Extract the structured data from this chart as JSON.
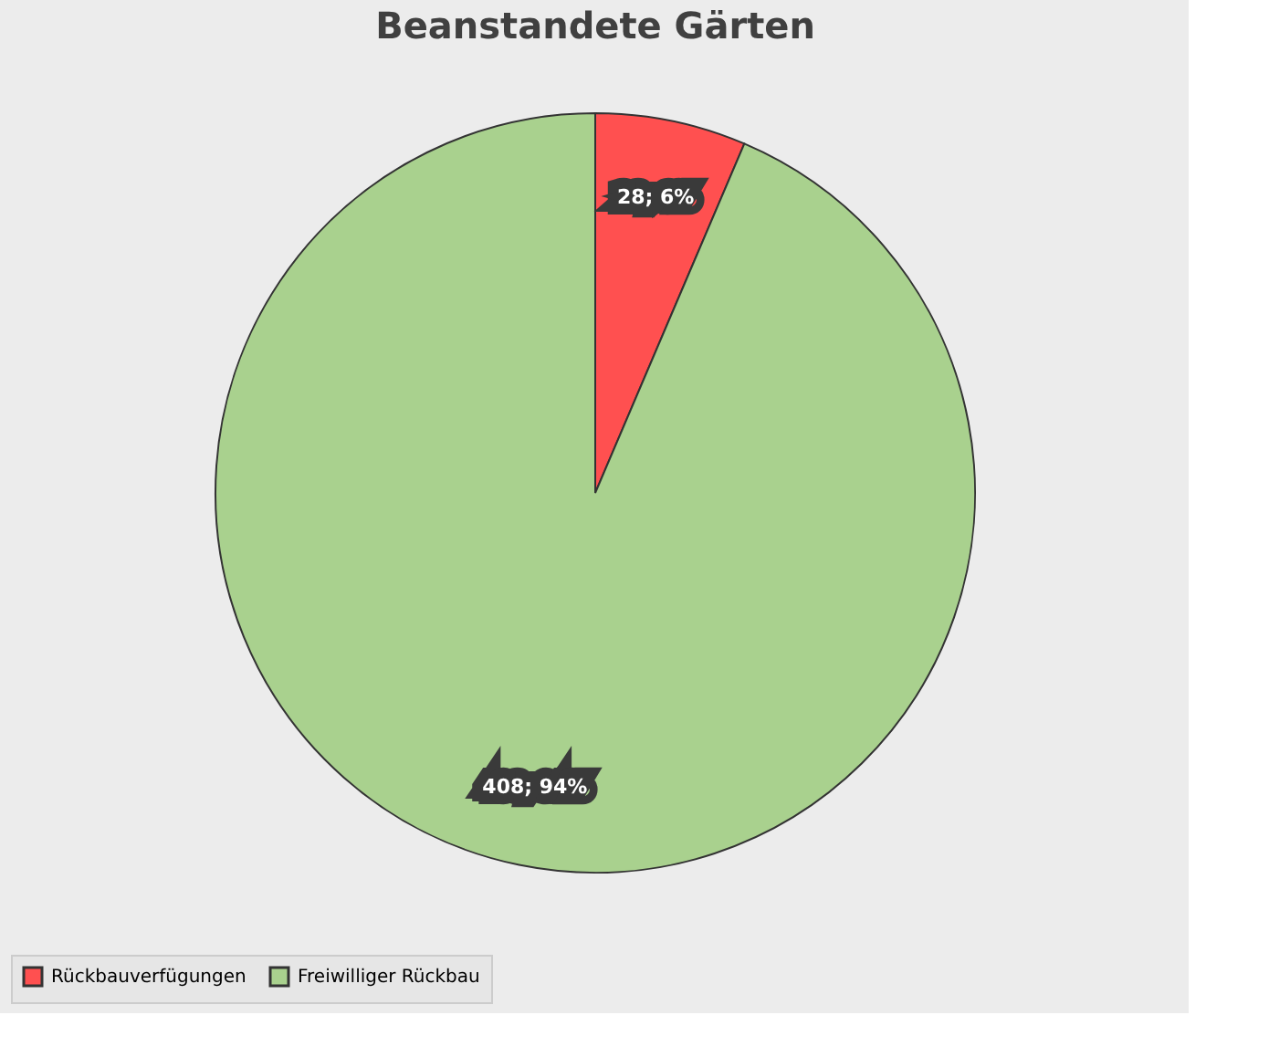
{
  "chart_data": {
    "type": "pie",
    "title": "Beanstandete Gärten",
    "categories": [
      "Rückbauverfügungen",
      "Freiwilliger Rückbau"
    ],
    "values": [
      28,
      408
    ],
    "colors": [
      "#ff5050",
      "#a9d18e"
    ],
    "value_labels": [
      "28; 6%",
      "408; 94%"
    ],
    "legend": "bottom"
  }
}
